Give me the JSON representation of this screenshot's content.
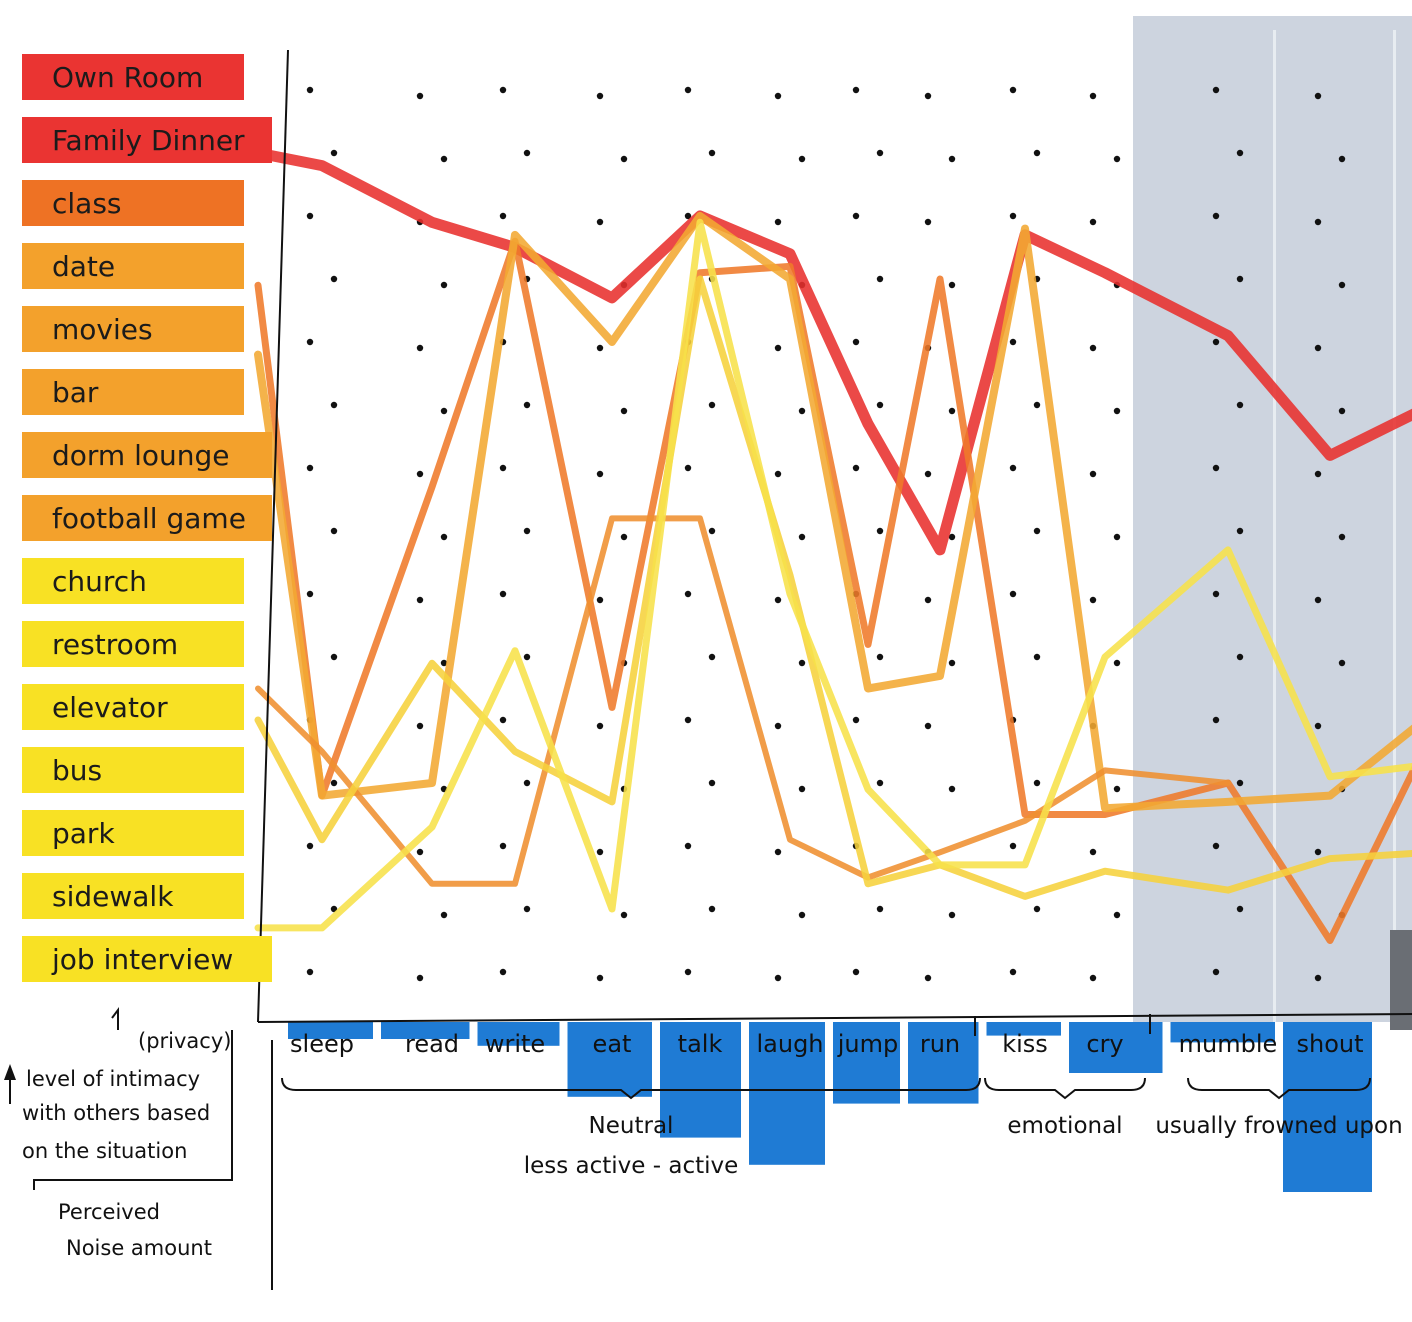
{
  "chart_data": {
    "type": "line",
    "x_categories": [
      "sleep",
      "read",
      "write",
      "eat",
      "talk",
      "laugh",
      "jump",
      "run",
      "kiss",
      "cry",
      "mumble",
      "shout"
    ],
    "x_groups": [
      {
        "label": "Neutral",
        "sublabel": "less active  -  active",
        "from": "sleep",
        "to": "run"
      },
      {
        "label": "emotional",
        "from": "kiss",
        "to": "cry"
      },
      {
        "label": "usually frowned upon",
        "from": "mumble",
        "to": "shout"
      }
    ],
    "y_axis": {
      "label": "level of intimacy with others based on the situation",
      "note": "(privacy)",
      "scale": "ordinal",
      "levels": [
        "Own Room",
        "Family Dinner",
        "class",
        "date",
        "movies",
        "bar",
        "dorm lounge",
        "football game",
        "church",
        "restroom",
        "elevator",
        "bus",
        "park",
        "sidewalk",
        "job interview"
      ]
    },
    "noise_label": "Perceived Noise amount",
    "noise_bars": [
      {
        "activity": "sleep",
        "noise": 0.5
      },
      {
        "activity": "read",
        "noise": 0.5
      },
      {
        "activity": "write",
        "noise": 0.7
      },
      {
        "activity": "eat",
        "noise": 2.2
      },
      {
        "activity": "talk",
        "noise": 3.4
      },
      {
        "activity": "laugh",
        "noise": 4.2
      },
      {
        "activity": "jump",
        "noise": 2.4
      },
      {
        "activity": "run",
        "noise": 2.4
      },
      {
        "activity": "kiss",
        "noise": 0.4
      },
      {
        "activity": "cry",
        "noise": 1.5
      },
      {
        "activity": "mumble",
        "noise": 0.6
      },
      {
        "activity": "shout",
        "noise": 5.0
      }
    ],
    "series": [
      {
        "color": "#e8302e",
        "width": 11,
        "points": [
          [
            -0.5,
            1.0
          ],
          [
            0,
            1.2
          ],
          [
            1,
            2.1
          ],
          [
            2,
            2.5
          ],
          [
            3,
            3.3
          ],
          [
            4,
            2.0
          ],
          [
            5,
            2.6
          ],
          [
            6,
            5.3
          ],
          [
            7,
            7.3
          ],
          [
            8,
            2.3
          ],
          [
            9,
            2.9
          ],
          [
            10,
            3.9
          ],
          [
            11,
            5.8
          ],
          [
            12,
            5.0
          ]
        ]
      },
      {
        "color": "#ef7a2a",
        "width": 7,
        "points": [
          [
            -0.5,
            3.1
          ],
          [
            0,
            11.2
          ],
          [
            1,
            6.3
          ],
          [
            2,
            2.4
          ],
          [
            3,
            9.8
          ],
          [
            4,
            2.9
          ],
          [
            5,
            2.8
          ],
          [
            6,
            8.8
          ],
          [
            7,
            3.0
          ],
          [
            8,
            11.5
          ],
          [
            9,
            11.5
          ],
          [
            10,
            11.0
          ],
          [
            11,
            13.5
          ],
          [
            12,
            10.2
          ]
        ]
      },
      {
        "color": "#f2a832",
        "width": 8,
        "points": [
          [
            -0.5,
            4.2
          ],
          [
            0,
            11.2
          ],
          [
            1,
            11.0
          ],
          [
            2,
            2.3
          ],
          [
            3,
            4.0
          ],
          [
            4,
            2.0
          ],
          [
            5,
            3.0
          ],
          [
            6,
            9.5
          ],
          [
            7,
            9.3
          ],
          [
            8,
            2.2
          ],
          [
            9,
            11.4
          ],
          [
            10,
            11.3
          ],
          [
            11,
            11.2
          ],
          [
            12,
            9.9
          ]
        ]
      },
      {
        "color": "#ef9030",
        "width": 6,
        "points": [
          [
            -0.5,
            9.5
          ],
          [
            0,
            10.5
          ],
          [
            1,
            12.6
          ],
          [
            2,
            12.6
          ],
          [
            3,
            6.8
          ],
          [
            4,
            6.8
          ],
          [
            5,
            11.9
          ],
          [
            6,
            12.5
          ],
          [
            7,
            12.1
          ],
          [
            8,
            11.6
          ],
          [
            9,
            10.8
          ],
          [
            10,
            11.0
          ]
        ]
      },
      {
        "color": "#f6d23c",
        "width": 7,
        "points": [
          [
            -0.5,
            10.0
          ],
          [
            0,
            11.9
          ],
          [
            1,
            9.1
          ],
          [
            2,
            10.5
          ],
          [
            3,
            11.3
          ],
          [
            4,
            3.0
          ],
          [
            5,
            7.7
          ],
          [
            6,
            12.6
          ],
          [
            7,
            12.3
          ],
          [
            8,
            12.8
          ],
          [
            9,
            12.4
          ],
          [
            10,
            12.7
          ],
          [
            11,
            12.2
          ],
          [
            12,
            12.1
          ]
        ]
      },
      {
        "color": "#f7e14a",
        "width": 7,
        "points": [
          [
            -0.5,
            13.3
          ],
          [
            0,
            13.3
          ],
          [
            1,
            11.7
          ],
          [
            2,
            8.9
          ],
          [
            3,
            13.0
          ],
          [
            4,
            2.1
          ],
          [
            5,
            8.0
          ],
          [
            6,
            11.1
          ],
          [
            7,
            12.3
          ],
          [
            8,
            12.3
          ],
          [
            9,
            9.0
          ],
          [
            10,
            7.3
          ],
          [
            11,
            10.9
          ],
          [
            12,
            10.7
          ]
        ]
      }
    ],
    "shaded_region": {
      "from": "mumble",
      "to": "shout"
    }
  },
  "legend_items": [
    {
      "label": "Own Room",
      "color": "#ea3432"
    },
    {
      "label": "Family Dinner",
      "color": "#ea3432"
    },
    {
      "label": "class",
      "color": "#ee7224"
    },
    {
      "label": "date",
      "color": "#f3a12c"
    },
    {
      "label": "movies",
      "color": "#f3a12c"
    },
    {
      "label": "bar",
      "color": "#f3a12c"
    },
    {
      "label": "dorm lounge",
      "color": "#f3a12c"
    },
    {
      "label": "football game",
      "color": "#f3a12c"
    },
    {
      "label": "church",
      "color": "#f8e124"
    },
    {
      "label": "restroom",
      "color": "#f8e124"
    },
    {
      "label": "elevator",
      "color": "#f8e124"
    },
    {
      "label": "bus",
      "color": "#f8e124"
    },
    {
      "label": "park",
      "color": "#f8e124"
    },
    {
      "label": "sidewalk",
      "color": "#f8e124"
    },
    {
      "label": "job interview",
      "color": "#f8e124"
    }
  ],
  "notes": {
    "privacy": "(privacy)",
    "intimacy_line1": "level of intimacy",
    "intimacy_line2": "with others based",
    "intimacy_line3": "on the situation",
    "noise_line1": "Perceived",
    "noise_line2": "Noise amount"
  },
  "colors": {
    "noise_bar": "#1f7bd4",
    "shade": "#cdd4df",
    "grid_dot": "#111111"
  }
}
